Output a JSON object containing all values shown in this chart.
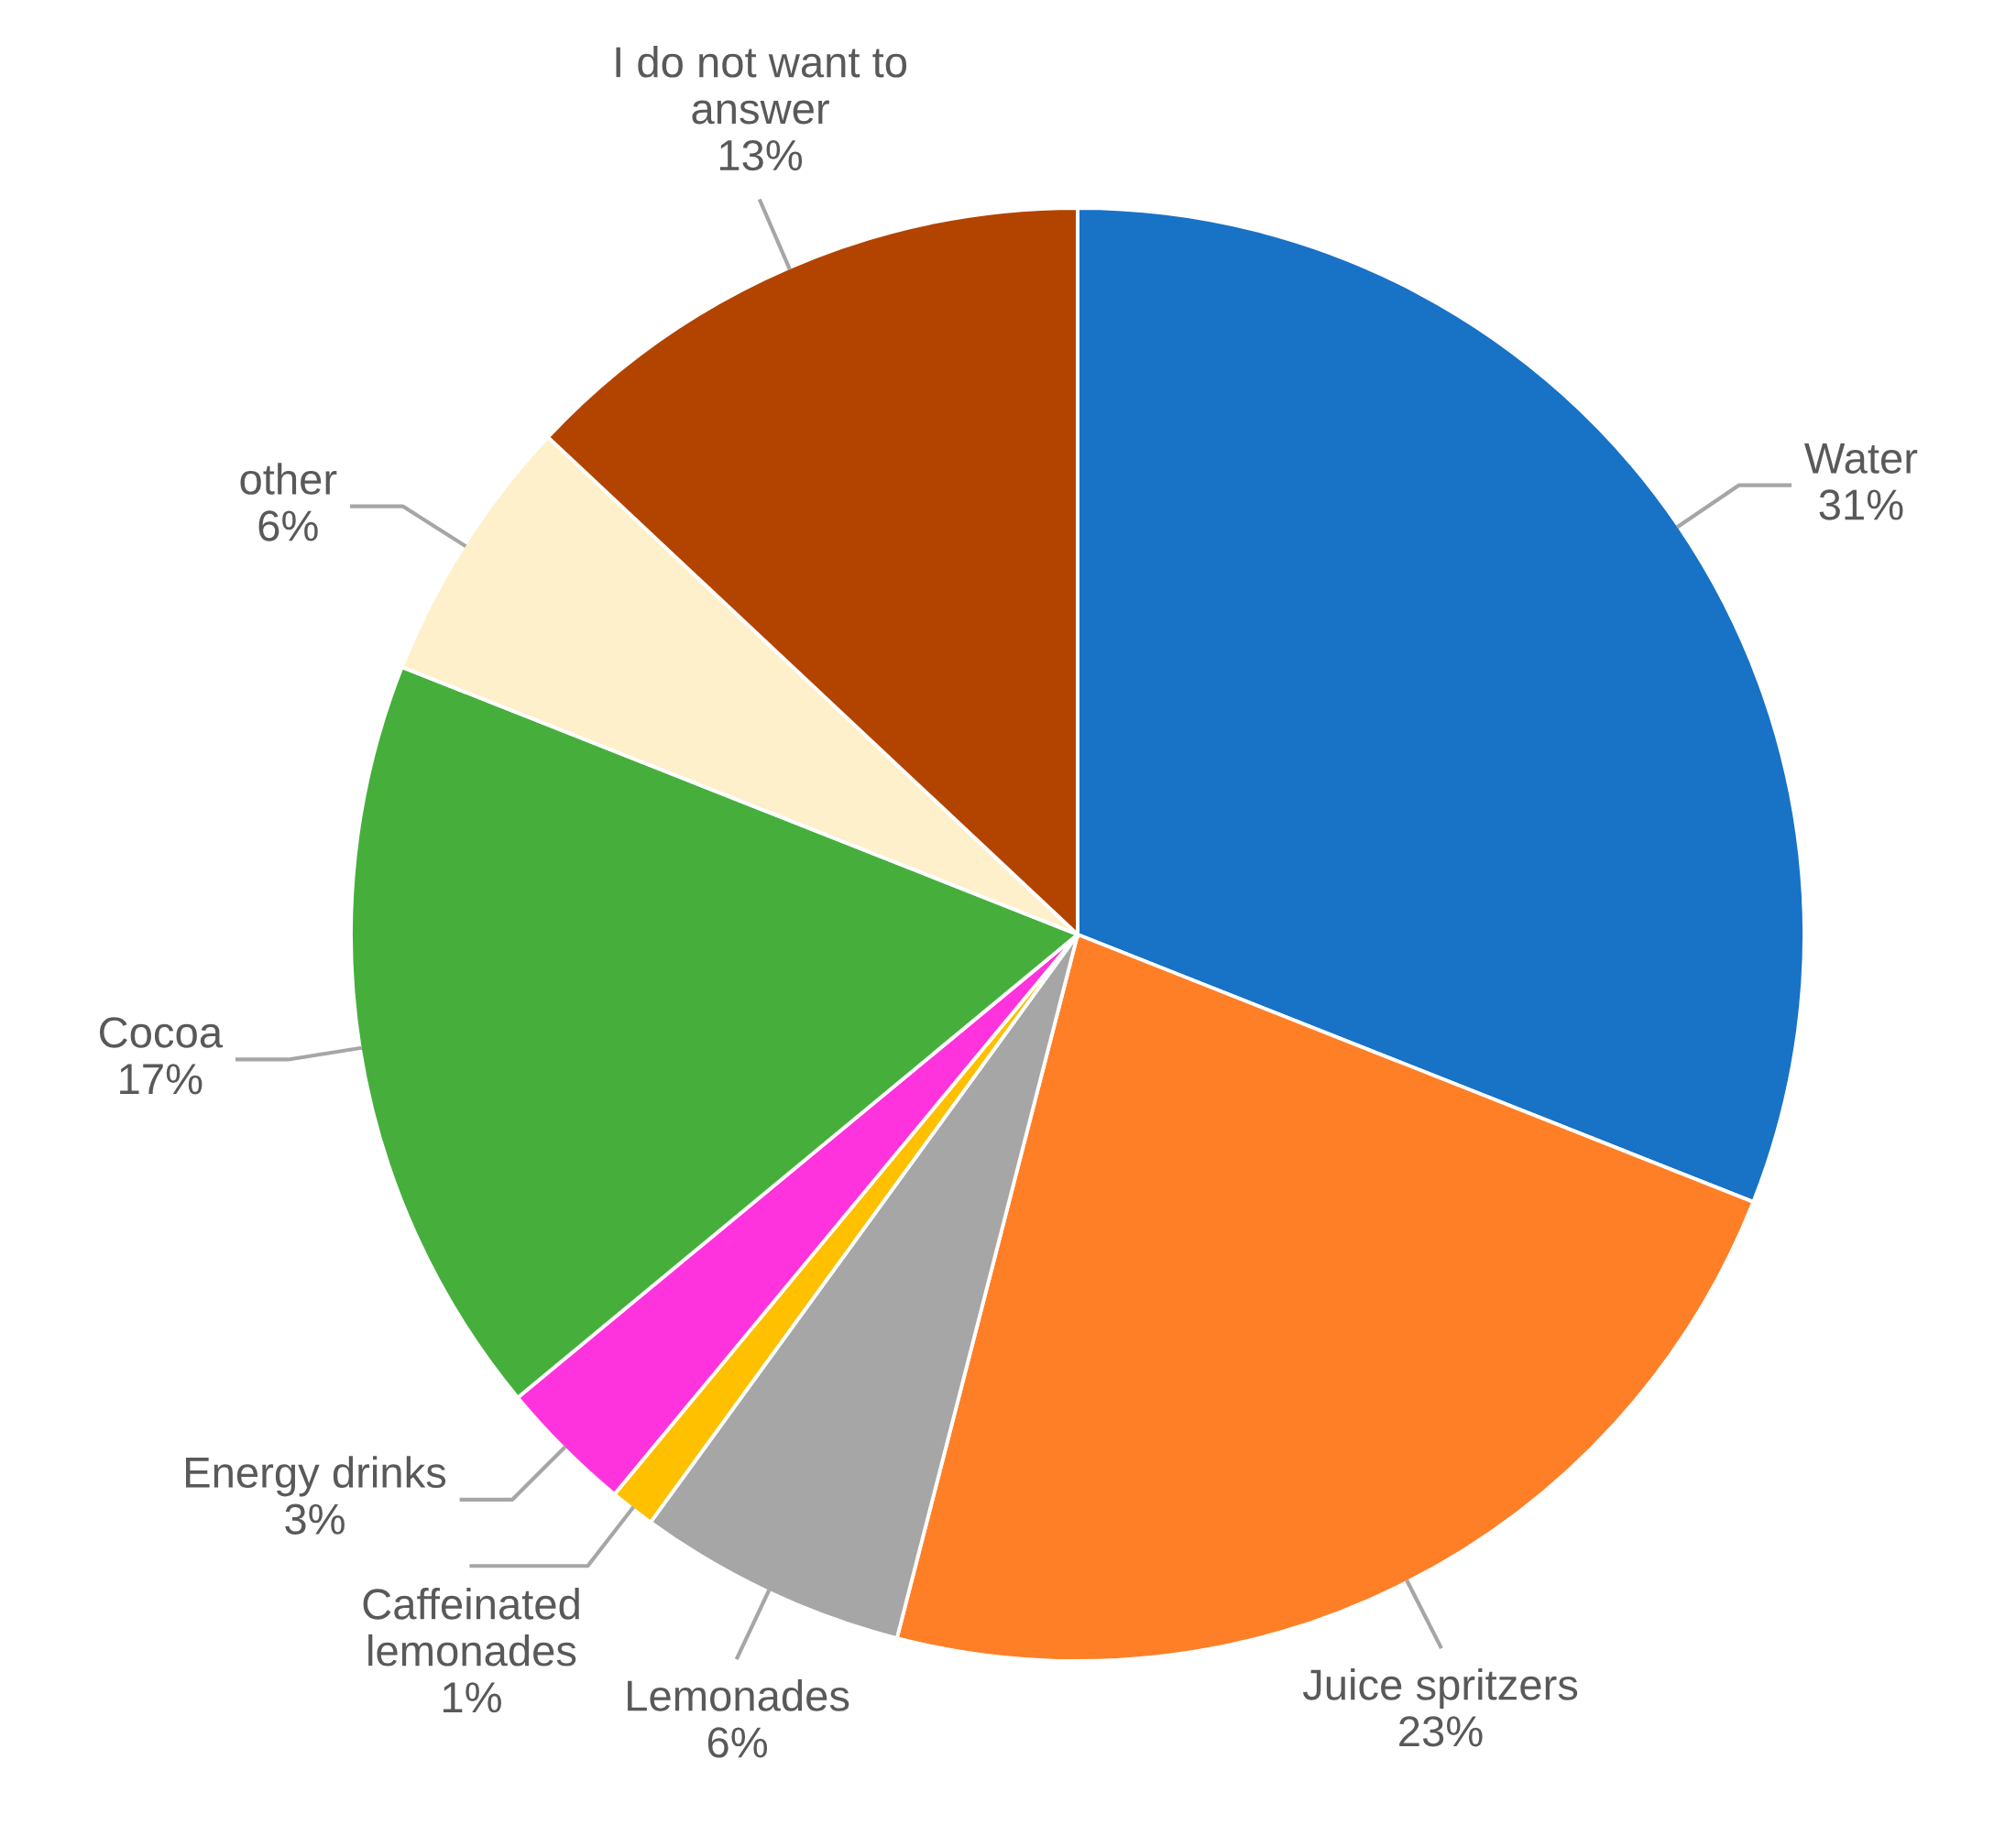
{
  "chart_data": {
    "type": "pie",
    "categories": [
      "Water",
      "Juice spritzers",
      "Lemonades",
      "Caffeinated lemonades",
      "Energy drinks",
      "Cocoa",
      "other",
      "I do not want to answer"
    ],
    "values": [
      31,
      23,
      6,
      1,
      3,
      17,
      6,
      13
    ],
    "value_labels": [
      "31%",
      "23%",
      "6%",
      "1%",
      "3%",
      "17%",
      "6%",
      "13%"
    ],
    "colors": [
      "#1872c6",
      "#ff7f27",
      "#a6a6a6",
      "#ffc000",
      "#ff33dd",
      "#46af3c",
      "#fff0cc",
      "#b34400"
    ],
    "legend": false
  }
}
